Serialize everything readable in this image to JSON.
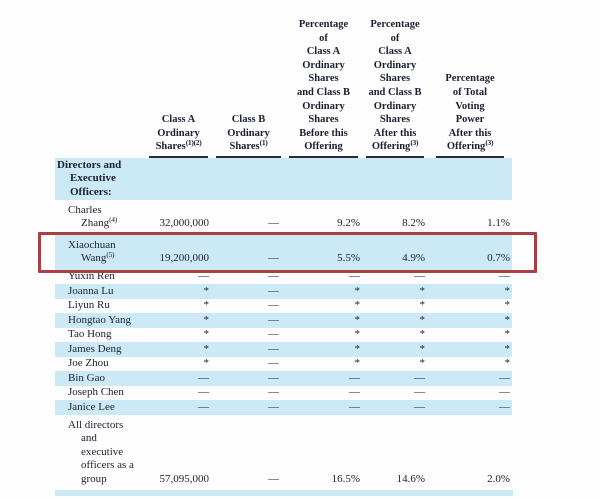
{
  "document": {
    "type": "share-ownership-table",
    "colors": {
      "row_shade": "#cce9f6",
      "highlight_border": "#a84044",
      "text": "#1c2030",
      "header_rule": "#2b2b36",
      "background": "#fdfdfe"
    }
  },
  "table": {
    "columns": [
      {
        "key": "name",
        "label": "",
        "sup": ""
      },
      {
        "key": "classA",
        "label": "Class A\nOrdinary\nShares",
        "sup": "(1)(2)"
      },
      {
        "key": "classB",
        "label": "Class B\nOrdinary\nShares",
        "sup": "(1)"
      },
      {
        "key": "pctBefore",
        "label": "Percentage\nof\nClass A\nOrdinary\nShares\nand Class B\nOrdinary\nShares\nBefore this\nOffering",
        "sup": ""
      },
      {
        "key": "pctAfter",
        "label": "Percentage\nof\nClass A\nOrdinary\nShares\nand Class B\nOrdinary\nShares\nAfter this\nOffering",
        "sup": "(3)"
      },
      {
        "key": "voting",
        "label": "Percentage\nof Total\nVoting\nPower\nAfter this\nOffering",
        "sup": "(3)"
      }
    ],
    "rows": [
      {
        "name": "Directors and\nExecutive\nOfficers:",
        "sup": "",
        "bold": true,
        "shade": true,
        "classA": "",
        "classB": "",
        "pctBefore": "",
        "pctAfter": "",
        "voting": ""
      },
      {
        "name": "Charles\nZhang",
        "sup": "(4)",
        "shade": false,
        "classA": "32,000,000",
        "classB": "—",
        "pctBefore": "9.2%",
        "pctAfter": "8.2%",
        "voting": "1.1%"
      },
      {
        "name": "Xiaochuan\nWang",
        "sup": "(5)",
        "shade": true,
        "highlight": true,
        "classA": "19,200,000",
        "classB": "—",
        "pctBefore": "5.5%",
        "pctAfter": "4.9%",
        "voting": "0.7%"
      },
      {
        "name": "Yuxin Ren",
        "sup": "",
        "shade": false,
        "classA": "—",
        "classB": "—",
        "pctBefore": "—",
        "pctAfter": "—",
        "voting": "—"
      },
      {
        "name": "Joanna Lu",
        "sup": "",
        "shade": true,
        "classA": "*",
        "classB": "—",
        "pctBefore": "*",
        "pctAfter": "*",
        "voting": "*"
      },
      {
        "name": "Liyun Ru",
        "sup": "",
        "shade": false,
        "classA": "*",
        "classB": "—",
        "pctBefore": "*",
        "pctAfter": "*",
        "voting": "*"
      },
      {
        "name": "Hongtao Yang",
        "sup": "",
        "shade": true,
        "classA": "*",
        "classB": "—",
        "pctBefore": "*",
        "pctAfter": "*",
        "voting": "*"
      },
      {
        "name": "Tao Hong",
        "sup": "",
        "shade": false,
        "classA": "*",
        "classB": "—",
        "pctBefore": "*",
        "pctAfter": "*",
        "voting": "*"
      },
      {
        "name": "James Deng",
        "sup": "",
        "shade": true,
        "classA": "*",
        "classB": "—",
        "pctBefore": "*",
        "pctAfter": "*",
        "voting": "*"
      },
      {
        "name": "Joe Zhou",
        "sup": "",
        "shade": false,
        "classA": "*",
        "classB": "—",
        "pctBefore": "*",
        "pctAfter": "*",
        "voting": "*"
      },
      {
        "name": "Bin Gao",
        "sup": "",
        "shade": true,
        "classA": "—",
        "classB": "—",
        "pctBefore": "—",
        "pctAfter": "—",
        "voting": "—"
      },
      {
        "name": "Joseph Chen",
        "sup": "",
        "shade": false,
        "classA": "—",
        "classB": "—",
        "pctBefore": "—",
        "pctAfter": "—",
        "voting": "—"
      },
      {
        "name": "Janice Lee",
        "sup": "",
        "shade": true,
        "classA": "—",
        "classB": "—",
        "pctBefore": "—",
        "pctAfter": "—",
        "voting": "—"
      },
      {
        "name": "All directors\nand\nexecutive\nofficers as a\ngroup",
        "sup": "",
        "shade": false,
        "classA": "57,095,000",
        "classB": "—",
        "pctBefore": "16.5%",
        "pctAfter": "14.6%",
        "voting": "2.0%"
      }
    ]
  }
}
